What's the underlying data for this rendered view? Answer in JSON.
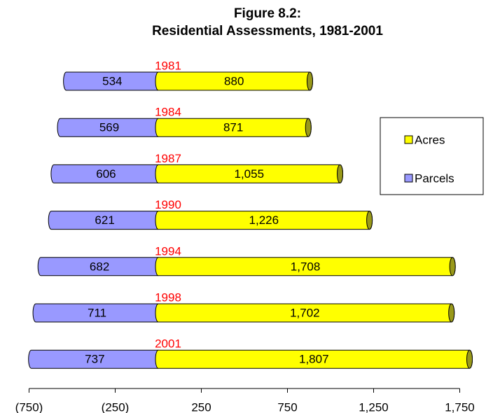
{
  "chart_data": {
    "type": "bar",
    "orientation": "horizontal",
    "stacked": true,
    "title": "Figure 8.2:",
    "subtitle": "Residential Assessments, 1981-2001",
    "categories": [
      "1981",
      "1984",
      "1987",
      "1990",
      "1994",
      "1998",
      "2001"
    ],
    "category_color": "#ff0000",
    "series": [
      {
        "name": "Parcels",
        "color": "#9999ff",
        "values": [
          -534,
          -569,
          -606,
          -621,
          -682,
          -711,
          -737
        ],
        "value_labels": [
          "534",
          "569",
          "606",
          "621",
          "682",
          "711",
          "737"
        ]
      },
      {
        "name": "Acres",
        "color": "#ffff00",
        "values": [
          880,
          871,
          1055,
          1226,
          1708,
          1702,
          1807
        ],
        "value_labels": [
          "880",
          "871",
          "1,055",
          "1,226",
          "1,708",
          "1,702",
          "1,807"
        ]
      }
    ],
    "xlim": [
      -750,
      1750
    ],
    "xticks": [
      {
        "value": -750,
        "label": "(750)"
      },
      {
        "value": -250,
        "label": "(250)"
      },
      250,
      750,
      {
        "value": 1250,
        "label": "1,250"
      },
      {
        "value": 1750,
        "label": "1,750"
      }
    ],
    "legend": "right"
  }
}
